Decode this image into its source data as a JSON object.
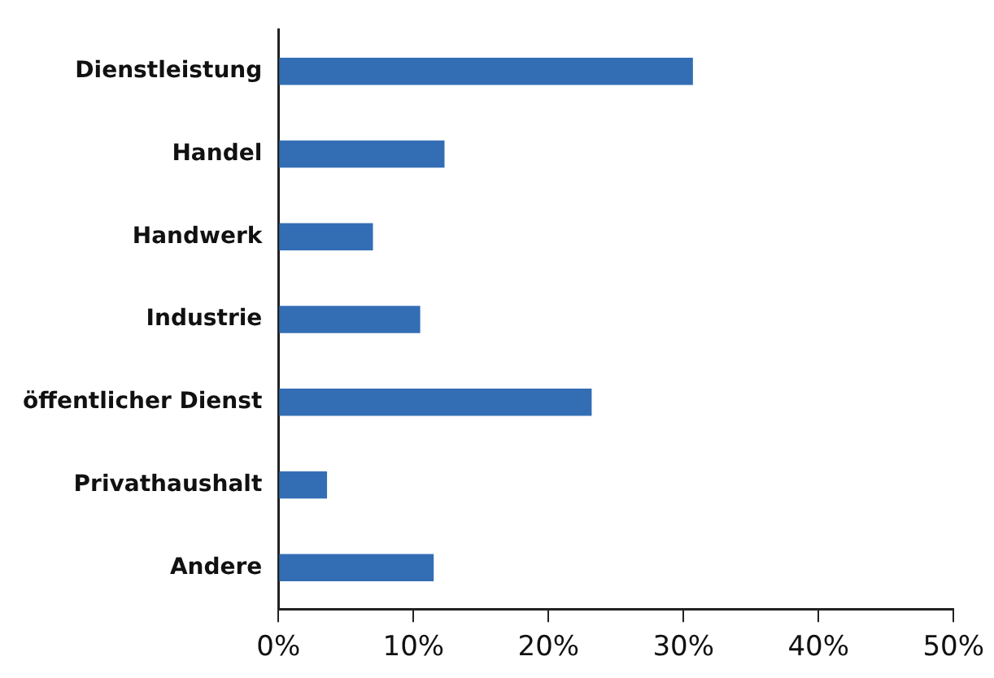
{
  "chart_data": {
    "type": "bar",
    "orientation": "horizontal",
    "categories": [
      "Dienstleistung",
      "Handel",
      "Handwerk",
      "Industrie",
      "öffentlicher Dienst",
      "Privathaushalt",
      "Andere"
    ],
    "values": [
      30.7,
      12.3,
      7.0,
      10.5,
      23.2,
      3.6,
      11.5
    ],
    "color": "#336eb4",
    "xlim": [
      0,
      50
    ],
    "xticks": [
      {
        "value": 0,
        "label": "0%"
      },
      {
        "value": 10,
        "label": "10%"
      },
      {
        "value": 20,
        "label": "20%"
      },
      {
        "value": 30,
        "label": "30%"
      },
      {
        "value": 40,
        "label": "40%"
      },
      {
        "value": 50,
        "label": "50%"
      }
    ],
    "grid": false,
    "legend": false
  }
}
